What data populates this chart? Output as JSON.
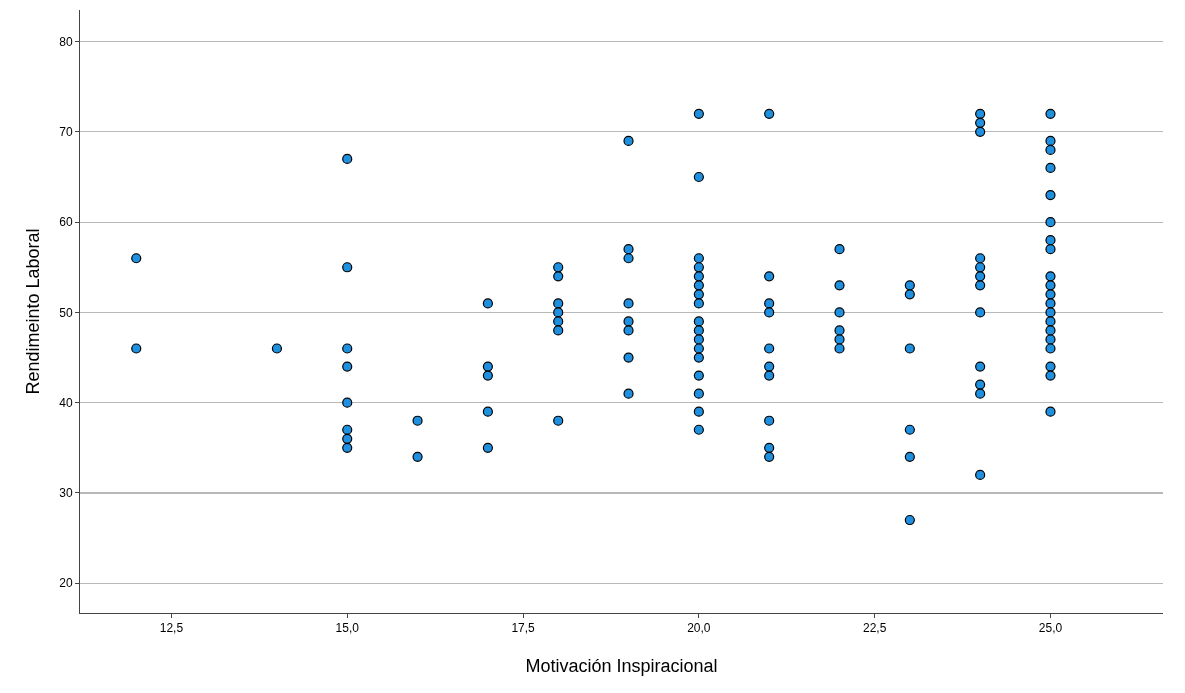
{
  "chart_data": {
    "type": "scatter",
    "xlabel": "Motivación Inspiracional",
    "ylabel": "Rendimeinto Laboral",
    "x": [
      12,
      12,
      14,
      15,
      15,
      15,
      15,
      15,
      15,
      15,
      15,
      16,
      16,
      17,
      17,
      17,
      17,
      17,
      18,
      18,
      18,
      18,
      18,
      18,
      18,
      19,
      19,
      19,
      19,
      19,
      19,
      19,
      19,
      20,
      20,
      20,
      20,
      20,
      20,
      20,
      20,
      20,
      20,
      20,
      20,
      20,
      20,
      20,
      20,
      20,
      21,
      21,
      21,
      21,
      21,
      21,
      21,
      21,
      21,
      21,
      22,
      22,
      22,
      22,
      22,
      22,
      23,
      23,
      23,
      23,
      23,
      23,
      24,
      24,
      24,
      24,
      24,
      24,
      24,
      24,
      24,
      24,
      24,
      24,
      25,
      25,
      25,
      25,
      25,
      25,
      25,
      25,
      25,
      25,
      25,
      25,
      25,
      25,
      25,
      25,
      25,
      25,
      25,
      25
    ],
    "values": [
      56,
      46,
      46,
      67,
      55,
      46,
      44,
      40,
      37,
      36,
      35,
      38,
      34,
      51,
      44,
      43,
      39,
      35,
      55,
      54,
      51,
      50,
      49,
      48,
      38,
      69,
      57,
      56,
      51,
      49,
      48,
      45,
      41,
      72,
      65,
      56,
      55,
      54,
      53,
      52,
      51,
      49,
      48,
      47,
      46,
      45,
      43,
      41,
      39,
      37,
      72,
      54,
      51,
      50,
      46,
      44,
      43,
      38,
      35,
      34,
      57,
      53,
      50,
      48,
      47,
      46,
      53,
      52,
      46,
      37,
      34,
      27,
      72,
      71,
      70,
      56,
      55,
      54,
      53,
      50,
      44,
      42,
      41,
      32,
      72,
      69,
      68,
      66,
      63,
      60,
      58,
      57,
      54,
      53,
      52,
      51,
      50,
      49,
      48,
      47,
      46,
      44,
      43,
      39
    ],
    "color": "#1f8fe0",
    "marker": "circle",
    "xlim": [
      11.2,
      26.6
    ],
    "xticks": [
      {
        "value": 12.5,
        "label": "12,5"
      },
      {
        "value": 15,
        "label": "15,0"
      },
      {
        "value": 17.5,
        "label": "17,5"
      },
      {
        "value": 20,
        "label": "20,0"
      },
      {
        "value": 22.5,
        "label": "22,5"
      },
      {
        "value": 25,
        "label": "25,0"
      }
    ],
    "ylim": [
      16.7,
      83.5
    ],
    "yticks": [
      20,
      30,
      40,
      50,
      60,
      70,
      80
    ],
    "grid": "y"
  }
}
